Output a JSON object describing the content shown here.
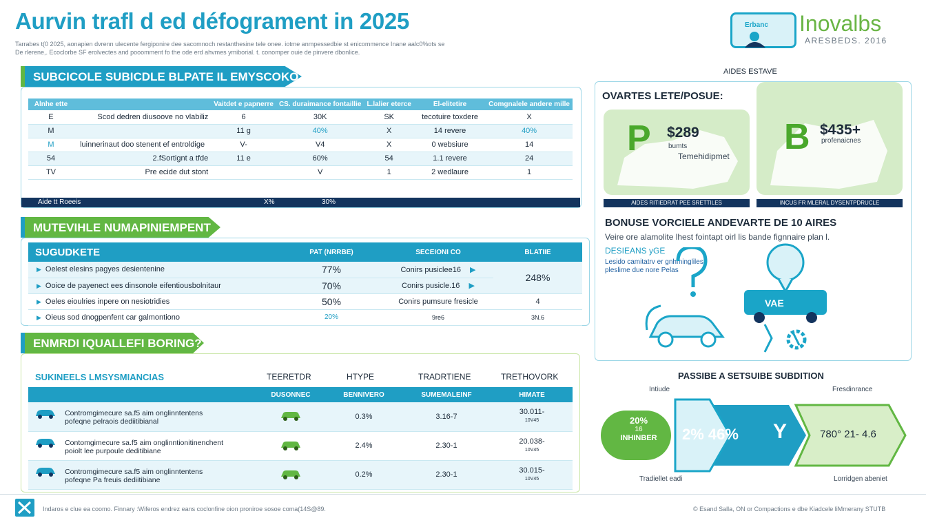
{
  "header": {
    "title": "Aurvin trafl d ed défograment in 2025",
    "subtitle_line1": "Tarrabes t(0 2025, aonapien dvrenn ulecente fergiponire dee sacomnoch restanthesine tele onee. iotme anmpessedbie st enicommence Inane aalc0%ots se",
    "subtitle_line2": "De rlerene,. Ecoclorbe SF erolvectes and pooomment fo the ode erd ahvmes ymiborial. t. conomper ouie de pinvere dbonlice."
  },
  "logo": {
    "badge": "Erbanc",
    "name": "Inovalbs",
    "sub": "ARESBEDS. 2016"
  },
  "section1": {
    "tab": "SUBCICOLE SUBICDLE BLPATE IL EMYSCOKO",
    "headers": [
      "Alnhe ette",
      "",
      "Vaitdet e papnerre",
      "CS. duraimance fontaillie",
      "L.lalier eterce",
      "El-elitetire",
      "Comgnalele andere mille"
    ],
    "rows": [
      [
        "E",
        "Scod dedren diusoove no vlabiliz",
        "6",
        "30K",
        "SK",
        "tecotuire toxdere",
        "X"
      ],
      [
        "M",
        "",
        "11 g",
        "40%",
        "X",
        "14 revere",
        "40%"
      ],
      [
        "M",
        "luinnerinaut doo stenent ef entroldige",
        "V-",
        "V4",
        "X",
        "0 websiure",
        "14"
      ],
      [
        "54",
        "2.fSortignt a tfde",
        "11 e",
        "60%",
        "54",
        "1.1 revere",
        "24"
      ],
      [
        "TV",
        "Pre ecide dut stont",
        "",
        "V",
        "1",
        "2 wedlaure",
        "1"
      ]
    ],
    "footer": {
      "label": "Aide tt Roeeis",
      "v1": "X%",
      "v2": "30%"
    }
  },
  "section2": {
    "tab": "MUTEVIHLE NUMAPINIEMPENT",
    "headers": [
      "SUGUDKETE",
      "PAT (NRRBE)",
      "SECEIONI CO",
      "BLATIIE"
    ],
    "rows": [
      {
        "label": "Oelest elesins pagyes desientenine",
        "pct": "77%",
        "option": "Conirs pusiclee16",
        "arrow": true
      },
      {
        "label": "Ooice de payenect ees dinsonole eifentiousbolnitaur",
        "pct": "70%",
        "option": "Conirs pusicle.16",
        "arrow": true
      },
      {
        "label": "Oeles eioulries inpere on nesiotridies",
        "pct": "50%",
        "option": "Conirs pumsure fresicle",
        "arrow": false
      },
      {
        "label": "Oieus sod dnogpenfent car galmontiono",
        "pct": "20%",
        "option": "9re6",
        "arrow": false
      }
    ],
    "merged_value": "248%",
    "extra_values": [
      "4",
      "3N.6"
    ]
  },
  "section3": {
    "tab": "ENMRDI IQUALLEFI BORING?",
    "head_labels": [
      "SUKINEELS LMSYSMIANCIAS",
      "TEERETDR",
      "HTYPE",
      "TRADRTIENE",
      "TRETHOVORK"
    ],
    "headers": [
      "DUSONNEC",
      "BENNIVERO",
      "SUMEMALEINF",
      "HIMATE"
    ],
    "rows": [
      {
        "desc1": "Contromgimecure sa.f5 aim onglinntentens",
        "desc2": "pofeqne pelraois dediitibianal",
        "v1": "0.3%",
        "v2": "3.16-7",
        "v3": "30.011-",
        "v3b": "10V45"
      },
      {
        "desc1": "Contomgimecure sa.f5 aim onglinntionitinenchent",
        "desc2": "poiolt lee purpoule deditibiane",
        "v1": "2.4%",
        "v2": "2.30-1",
        "v3": "20.038-",
        "v3b": "10V45"
      },
      {
        "desc1": "Contromgimecure sa.f5 aim onglinntentens",
        "desc2": "pofeqne Pa freuis dediitibiane",
        "v1": "0.2%",
        "v2": "2.30-1",
        "v3": "30.015-",
        "v3b": "10V45"
      }
    ]
  },
  "right": {
    "top_label": "AIDES ESTAVE",
    "panel_title": "OVARTES LETE/POSUE:",
    "card1": {
      "letter": "P",
      "price": "$289",
      "sub1": "bumts",
      "sub2": "Temehidipmet",
      "bar": "AIDES RITIEDRAT PEE SRETTILES"
    },
    "card2": {
      "letter": "B",
      "price": "$435+",
      "sub1": "profenaicnes",
      "bar": "INCUS FR MLERAL DYSENTPDRUCLE"
    },
    "bonus_title": "BONUSE VORCIELE ANDEVARTE DE 10 AIRES",
    "bonus_text": "Veire ore alamolite lhest fointapt oirl lis bande fignnaire plan l.",
    "design_title": "DESIEANS yGE",
    "design_text1": "Lesido camitatrv er gnhmingliles",
    "design_text2": "pleslime due nore Pelas"
  },
  "flow": {
    "title": "PASSIBE A SETSUIBE SUBDITION",
    "top_left": "Intiude",
    "top_right": "Fresdinrance",
    "left_circle1": "20%",
    "left_circle2": "16",
    "left_circle3": "INHINBER",
    "mid_value": "2% 46%",
    "letter": "Y",
    "right_values": "780° 21- 4.6",
    "bottom_left": "Tradiellet eadi",
    "bottom_right": "Lorridgen abeniet"
  },
  "footer": {
    "left": "Indaros e clue ea coomo. Finnary :Wiferos endrez eans coclonfine oion proniroe sosoe coma(14S@89.",
    "right": "© Esand Salla, ON or Compactions e dbe Kiadcele liMmerany STUTB"
  },
  "colors": {
    "blue": "#1f9ec4",
    "green": "#62b743",
    "navy": "#13345e",
    "light": "#e7f5fa"
  }
}
